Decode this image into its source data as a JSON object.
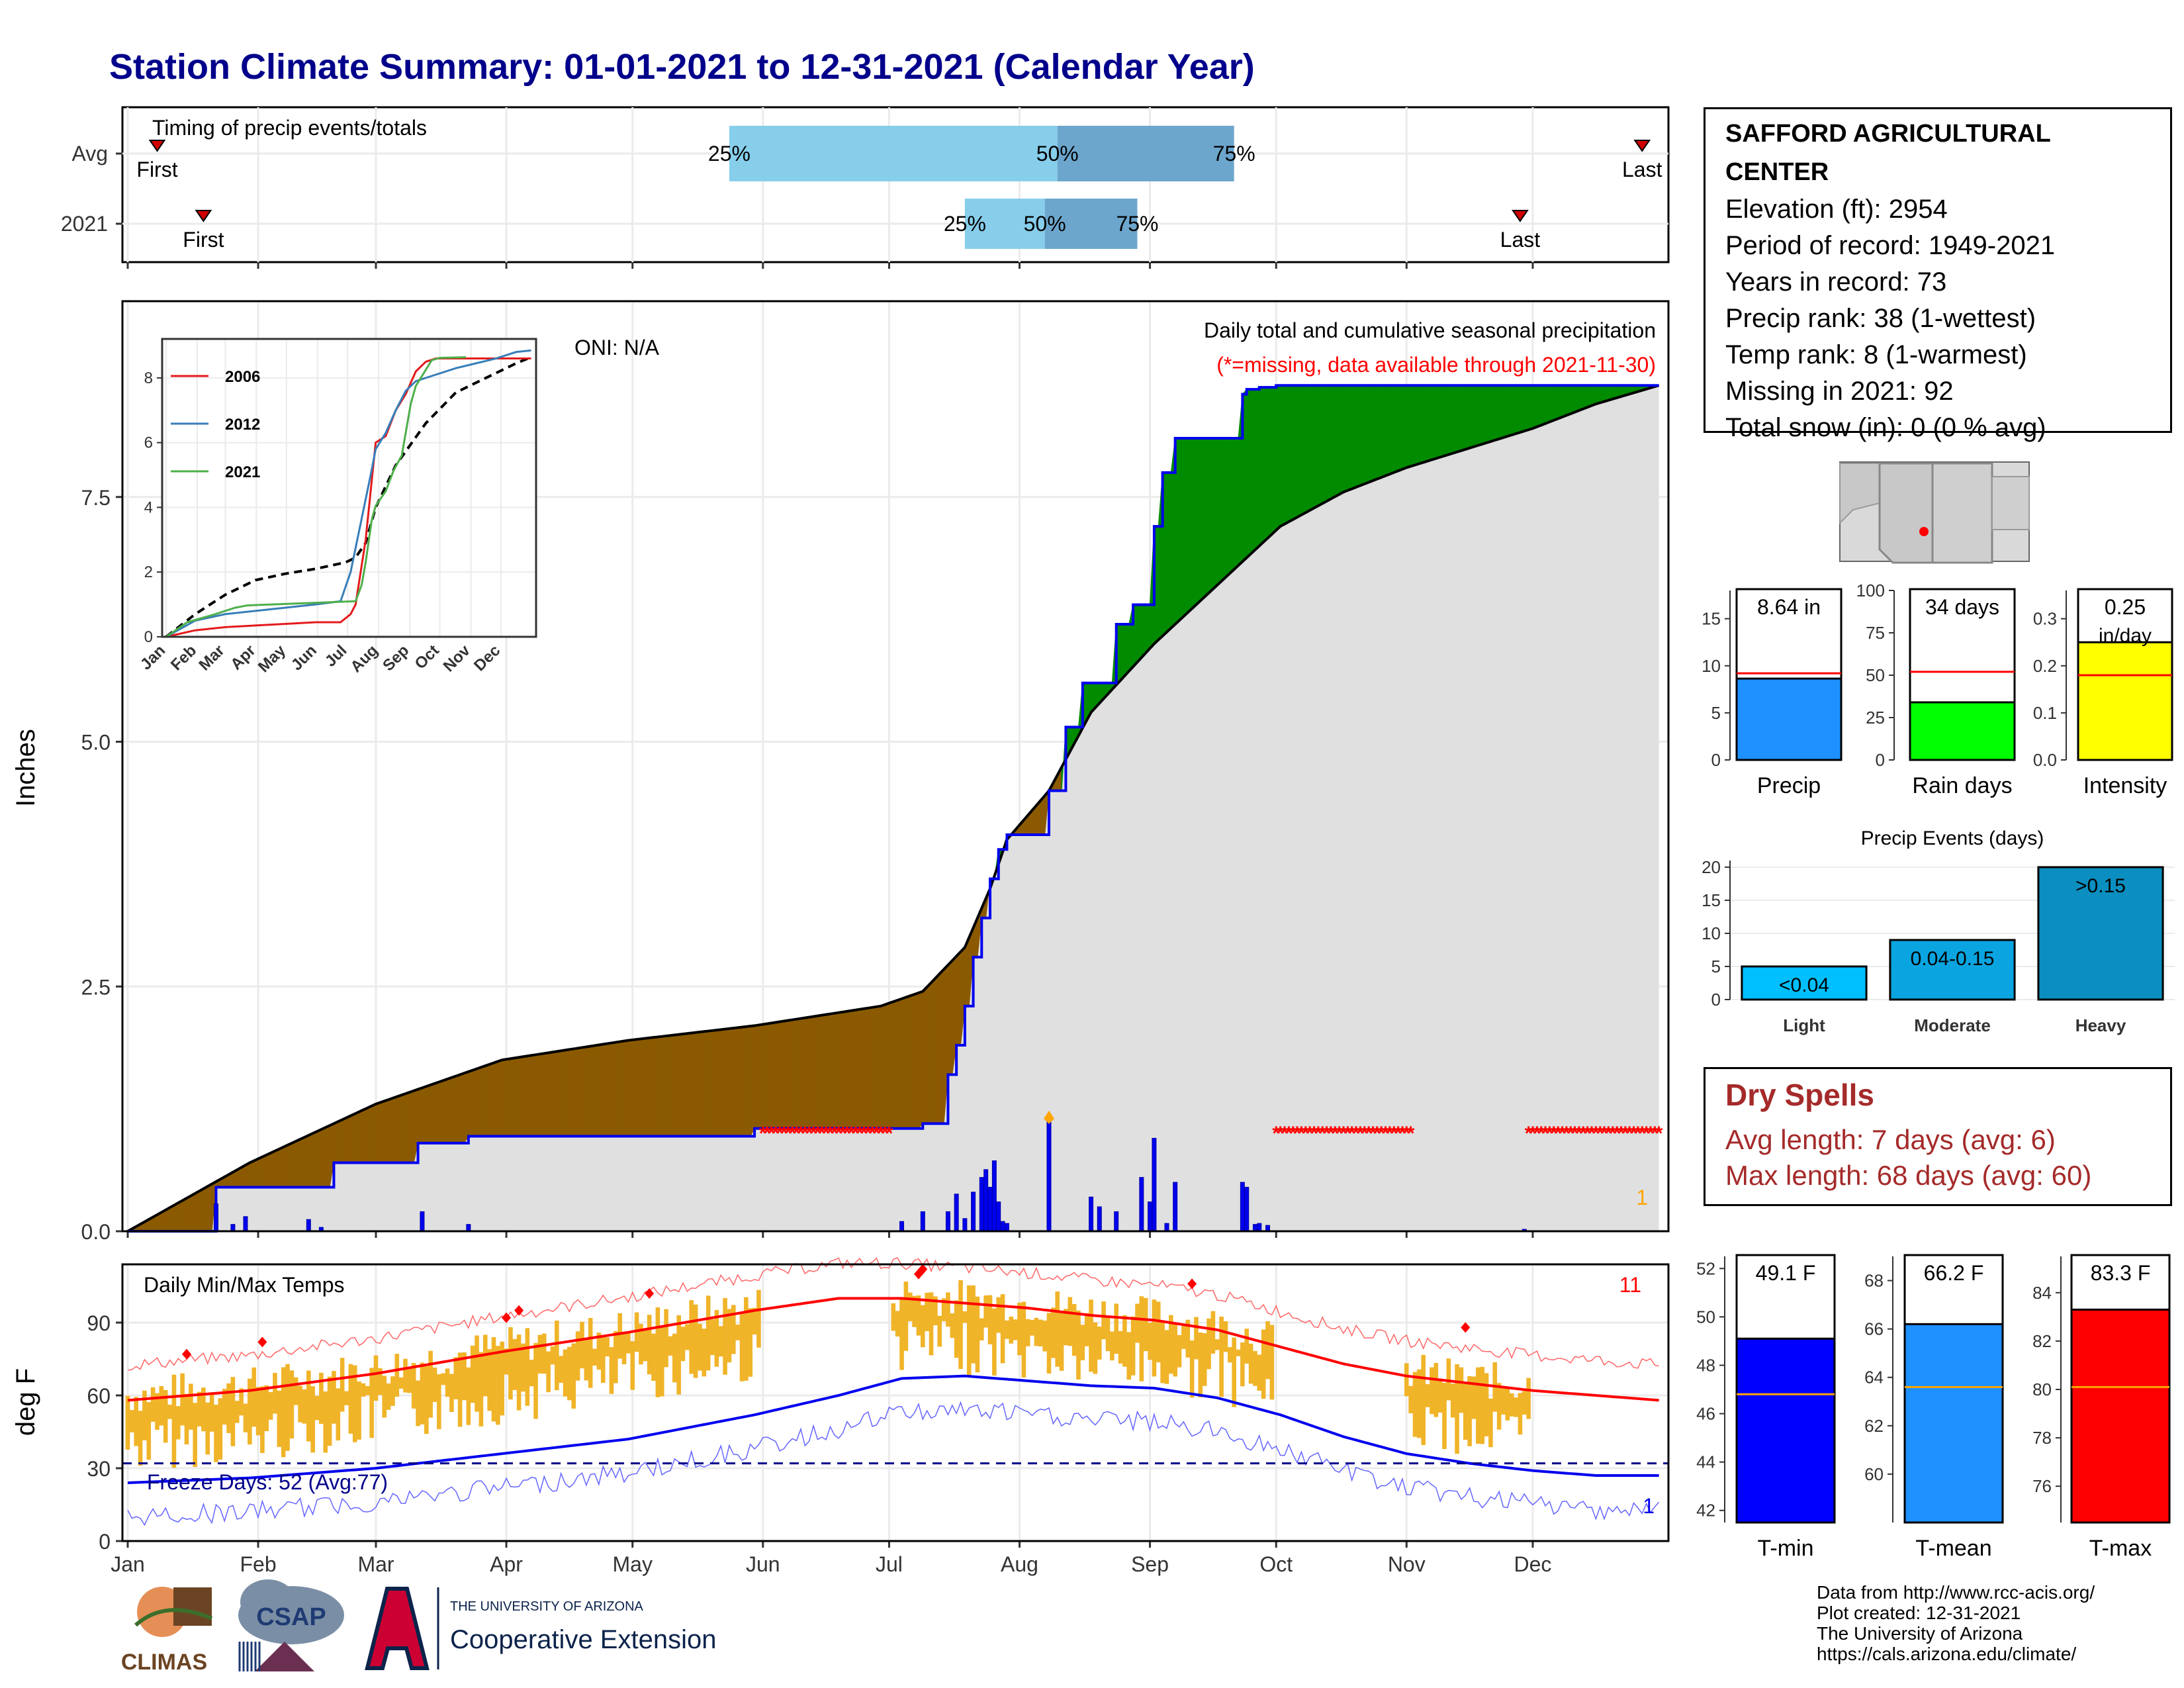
{
  "page_title": "Station Climate Summary: 01-01-2021 to 12-31-2021 (Calendar Year)",
  "station": {
    "name": "SAFFORD AGRICULTURAL CENTER",
    "lines": [
      "Elevation (ft): 2954",
      "Period of record: 1949-2021",
      "Years in record: 73",
      "Precip rank: 38 (1-wettest)",
      "Temp rank: 8 (1-warmest)",
      "Missing in 2021: 92",
      "Total snow (in): 0 (0 % avg)"
    ]
  },
  "dry_spells": {
    "heading": "Dry Spells",
    "avg_length": "Avg length: 7 days (avg: 6)",
    "max_length": "Max length: 68 days (avg: 60)"
  },
  "credits": [
    "Data from http://www.rcc-acis.org/",
    "Plot created: 12-31-2021",
    "The University of Arizona",
    "https://cals.arizona.edu/climate/"
  ],
  "logos": {
    "climas": "CLIMAS",
    "csap": "CSAP",
    "ua_small": "THE UNIVERSITY OF ARIZONA",
    "ua_big": "Cooperative Extension"
  },
  "months": [
    "Jan",
    "Feb",
    "Mar",
    "Apr",
    "May",
    "Jun",
    "Jul",
    "Aug",
    "Sep",
    "Oct",
    "Nov",
    "Dec"
  ],
  "chart_data": [
    {
      "id": "timing",
      "type": "bar",
      "title": "Timing of precip events/totals",
      "rows": [
        {
          "label": "Avg",
          "first_day": 8,
          "last_day": 361,
          "q25_day": 144,
          "q50_day": 222,
          "q75_day": 264,
          "first_label": "First",
          "last_label": "Last",
          "q_labels": [
            "25%",
            "50%",
            "75%"
          ]
        },
        {
          "label": "2021",
          "first_day": 19,
          "last_day": 332,
          "q25_day": 200,
          "q50_day": 219,
          "q75_day": 241,
          "first_label": "First",
          "last_label": "Last",
          "q_labels": [
            "25%",
            "50%",
            "75%"
          ]
        }
      ],
      "colors": {
        "q25_50": "#87ceeb",
        "q50_75": "#6ca6cd",
        "marker": "#d00000"
      }
    },
    {
      "id": "precip-cumulative",
      "type": "area",
      "title": "Daily total and cumulative seasonal precipitation",
      "subtitle": "(*=missing, data available through 2021-11-30)",
      "ylabel": "Inches",
      "ylim": [
        0,
        9.5
      ],
      "yticks": [
        0.0,
        2.5,
        5.0,
        7.5
      ],
      "ytick_labels": [
        "0.0",
        "2.5",
        "5.0",
        "7.5"
      ],
      "oni": "ONI: N/A",
      "corner_value": "1",
      "avg_cumulative": {
        "x": [
          1,
          30,
          60,
          90,
          120,
          150,
          180,
          190,
          200,
          206,
          210,
          220,
          230,
          245,
          260,
          275,
          290,
          305,
          320,
          335,
          350,
          365
        ],
        "y": [
          0,
          0.7,
          1.3,
          1.75,
          1.95,
          2.1,
          2.3,
          2.45,
          2.9,
          3.5,
          4.0,
          4.5,
          5.3,
          6.0,
          6.6,
          7.2,
          7.55,
          7.8,
          8.0,
          8.2,
          8.45,
          8.64
        ]
      },
      "cumulative_2021": {
        "x": [
          1,
          22,
          22,
          50,
          50,
          70,
          70,
          82,
          82,
          150,
          150,
          190,
          190,
          196,
          196,
          198,
          198,
          200,
          200,
          202,
          202,
          204,
          204,
          206,
          206,
          208,
          208,
          210,
          210,
          220,
          220,
          224,
          224,
          228,
          228,
          236,
          236,
          240,
          240,
          245,
          245,
          247,
          247,
          250,
          250,
          266,
          266,
          267,
          267,
          270,
          270,
          274,
          274,
          300,
          300,
          365
        ],
        "y": [
          0,
          0,
          0.45,
          0.45,
          0.7,
          0.7,
          0.9,
          0.9,
          0.97,
          0.97,
          1.05,
          1.05,
          1.1,
          1.1,
          1.6,
          1.6,
          1.9,
          1.9,
          2.3,
          2.3,
          2.8,
          2.8,
          3.2,
          3.2,
          3.6,
          3.6,
          3.9,
          3.9,
          4.05,
          4.05,
          4.5,
          4.5,
          5.15,
          5.15,
          5.6,
          5.6,
          6.2,
          6.2,
          6.4,
          6.4,
          7.2,
          7.2,
          7.75,
          7.75,
          8.1,
          8.1,
          8.55,
          8.55,
          8.6,
          8.6,
          8.62,
          8.62,
          8.64,
          8.64,
          8.64,
          8.64
        ]
      },
      "daily_bars": [
        {
          "day": 22,
          "in": 0.28
        },
        {
          "day": 26,
          "in": 0.07
        },
        {
          "day": 29,
          "in": 0.15
        },
        {
          "day": 44,
          "in": 0.12
        },
        {
          "day": 47,
          "in": 0.04
        },
        {
          "day": 71,
          "in": 0.2
        },
        {
          "day": 82,
          "in": 0.07
        },
        {
          "day": 185,
          "in": 0.1
        },
        {
          "day": 190,
          "in": 0.2
        },
        {
          "day": 196,
          "in": 0.2
        },
        {
          "day": 198,
          "in": 0.38
        },
        {
          "day": 200,
          "in": 0.13
        },
        {
          "day": 202,
          "in": 0.4
        },
        {
          "day": 204,
          "in": 0.55
        },
        {
          "day": 205,
          "in": 0.63
        },
        {
          "day": 206,
          "in": 0.45
        },
        {
          "day": 207,
          "in": 0.72
        },
        {
          "day": 208,
          "in": 0.3
        },
        {
          "day": 209,
          "in": 0.1
        },
        {
          "day": 210,
          "in": 0.08
        },
        {
          "day": 220,
          "in": 1.15
        },
        {
          "day": 230,
          "in": 0.35
        },
        {
          "day": 232,
          "in": 0.25
        },
        {
          "day": 236,
          "in": 0.2
        },
        {
          "day": 242,
          "in": 0.55
        },
        {
          "day": 244,
          "in": 0.3
        },
        {
          "day": 245,
          "in": 0.95
        },
        {
          "day": 248,
          "in": 0.08
        },
        {
          "day": 250,
          "in": 0.5
        },
        {
          "day": 266,
          "in": 0.5
        },
        {
          "day": 267,
          "in": 0.45
        },
        {
          "day": 269,
          "in": 0.07
        },
        {
          "day": 270,
          "in": 0.08
        },
        {
          "day": 272,
          "in": 0.06
        },
        {
          "day": 333,
          "in": 0.02
        }
      ],
      "missing_ranges": [
        [
          152,
          182
        ],
        [
          274,
          306
        ],
        [
          334,
          365
        ]
      ],
      "missing_level": 1.0,
      "colors": {
        "below_avg": "#8b5a00",
        "above_avg": "#008b00",
        "obs_line": "#0000ee",
        "avg_line": "#000000",
        "bar": "#0000ee",
        "missing": "#ff0000",
        "bg_fill": "#e0e0e0"
      }
    },
    {
      "id": "inset",
      "type": "line",
      "ylim": [
        0,
        9
      ],
      "yticks": [
        0,
        2,
        4,
        6,
        8
      ],
      "series": [
        {
          "name": "2006",
          "color": "#e41a1c",
          "x": [
            1,
            30,
            60,
            90,
            120,
            150,
            175,
            185,
            190,
            200,
            205,
            210,
            220,
            230,
            240,
            250,
            260,
            270,
            280,
            300,
            320,
            340,
            365
          ],
          "y": [
            0,
            0.2,
            0.3,
            0.35,
            0.4,
            0.45,
            0.45,
            0.7,
            1.0,
            3.0,
            4.5,
            6.0,
            6.2,
            7.0,
            7.5,
            8.2,
            8.5,
            8.6,
            8.6,
            8.6,
            8.6,
            8.6,
            8.6
          ]
        },
        {
          "name": "2012",
          "color": "#377eb8",
          "x": [
            1,
            30,
            60,
            90,
            120,
            150,
            175,
            185,
            195,
            205,
            210,
            220,
            230,
            240,
            250,
            270,
            290,
            310,
            330,
            350,
            365
          ],
          "y": [
            0,
            0.5,
            0.7,
            0.8,
            0.9,
            1.0,
            1.1,
            2.0,
            3.5,
            5.0,
            5.8,
            6.3,
            7.0,
            7.6,
            7.9,
            8.1,
            8.3,
            8.45,
            8.6,
            8.8,
            8.85
          ]
        },
        {
          "name": "2021",
          "color": "#4daf4a",
          "x": [
            1,
            22,
            50,
            70,
            82,
            150,
            190,
            196,
            200,
            206,
            210,
            220,
            228,
            236,
            245,
            250,
            266,
            274,
            300
          ],
          "y": [
            0,
            0.45,
            0.7,
            0.9,
            0.97,
            1.05,
            1.1,
            1.6,
            2.3,
            3.6,
            4.05,
            4.5,
            5.15,
            5.6,
            7.2,
            7.75,
            8.55,
            8.62,
            8.64
          ]
        }
      ],
      "avg": {
        "x": [
          1,
          30,
          60,
          90,
          120,
          150,
          180,
          190,
          200,
          210,
          230,
          260,
          290,
          320,
          350,
          365
        ],
        "y": [
          0,
          0.7,
          1.3,
          1.75,
          1.95,
          2.1,
          2.3,
          2.45,
          2.9,
          4.0,
          5.3,
          6.6,
          7.55,
          8.0,
          8.45,
          8.64
        ]
      }
    },
    {
      "id": "temps",
      "type": "line",
      "title": "Daily Min/Max Temps",
      "ylabel": "deg F",
      "ylim": [
        0,
        114
      ],
      "yticks": [
        0,
        30,
        60,
        90
      ],
      "freeze_line": 32,
      "freeze_text": "Freeze Days: 52 (Avg:77)",
      "top_right_count": "11",
      "bottom_right_count": "1",
      "avg_max": {
        "x": [
          1,
          30,
          60,
          90,
          120,
          150,
          170,
          185,
          200,
          215,
          230,
          245,
          260,
          275,
          290,
          305,
          320,
          335,
          350,
          365
        ],
        "y": [
          58,
          62,
          69,
          78,
          86,
          95,
          100,
          100,
          98,
          96,
          93,
          91,
          87,
          80,
          73,
          68,
          65,
          62,
          60,
          58
        ]
      },
      "avg_min": {
        "x": [
          1,
          30,
          60,
          90,
          120,
          150,
          170,
          185,
          200,
          215,
          230,
          245,
          260,
          275,
          290,
          305,
          320,
          335,
          350,
          365
        ],
        "y": [
          24,
          26,
          30,
          36,
          42,
          52,
          60,
          67,
          68,
          66,
          64,
          63,
          59,
          52,
          43,
          36,
          32,
          29,
          27,
          27
        ]
      },
      "obs_days": [
        [
          1,
          151
        ],
        [
          183,
          273
        ],
        [
          305,
          334
        ]
      ],
      "record_max_markers": [
        {
          "day": 15,
          "f": 77
        },
        {
          "day": 33,
          "f": 82
        },
        {
          "day": 91,
          "f": 92
        },
        {
          "day": 94,
          "f": 95
        },
        {
          "day": 125,
          "f": 102
        },
        {
          "day": 189,
          "f": 110
        },
        {
          "day": 190,
          "f": 112
        },
        {
          "day": 254,
          "f": 106
        },
        {
          "day": 319,
          "f": 88
        }
      ],
      "colors": {
        "range_bar": "#f0b429",
        "avg_max": "#ff0000",
        "avg_min": "#0000ee",
        "record_max": "#ff6666",
        "record_min": "#6666ff",
        "freeze": "#00008b"
      }
    },
    {
      "id": "precip-mini",
      "type": "bar",
      "xlabel": "Precip",
      "value": 8.64,
      "avg": 9.2,
      "label": "8.64 in",
      "ylim": [
        0,
        18
      ],
      "yticks": [
        0,
        5,
        10,
        15
      ],
      "color": "#1e90ff"
    },
    {
      "id": "raindays-mini",
      "type": "bar",
      "xlabel": "Rain days",
      "value": 34,
      "avg": 52,
      "label": "34 days",
      "ylim": [
        0,
        100
      ],
      "yticks": [
        0,
        25,
        50,
        75,
        100
      ],
      "color": "#00ff00"
    },
    {
      "id": "intensity-mini",
      "type": "bar",
      "xlabel": "Intensity",
      "value": 0.25,
      "avg": 0.18,
      "label": "0.25",
      "label2": "in/day",
      "ylim": [
        0,
        0.36
      ],
      "ytick_values": [
        0,
        0.1,
        0.2,
        0.3
      ],
      "yticks": [
        "0.0",
        "0.1",
        "0.2",
        "0.3"
      ],
      "color": "#ffff00"
    },
    {
      "id": "events",
      "type": "bar",
      "title": "Precip Events (days)",
      "categories": [
        "Light",
        "Moderate",
        "Heavy"
      ],
      "values": [
        5,
        9,
        20
      ],
      "labels": [
        "<0.04",
        "0.04-0.15",
        ">0.15"
      ],
      "ylim": [
        0,
        21
      ],
      "yticks": [
        0,
        5,
        10,
        15,
        20
      ],
      "colors": [
        "#00bfff",
        "#0aa5e0",
        "#0b8fc0"
      ]
    },
    {
      "id": "tmin-mini",
      "type": "bar",
      "xlabel": "T-min",
      "value": 49.1,
      "avg": 46.8,
      "label": "49.1 F",
      "ylim": [
        41.5,
        52.5
      ],
      "yticks": [
        42,
        44,
        46,
        48,
        50,
        52
      ],
      "color": "#0000ff"
    },
    {
      "id": "tmean-mini",
      "type": "bar",
      "xlabel": "T-mean",
      "value": 66.2,
      "avg": 63.6,
      "label": "66.2 F",
      "ylim": [
        58,
        69
      ],
      "yticks": [
        60,
        62,
        64,
        66,
        68
      ],
      "color": "#1e90ff"
    },
    {
      "id": "tmax-mini",
      "type": "bar",
      "xlabel": "T-max",
      "value": 83.3,
      "avg": 80.1,
      "label": "83.3 F",
      "ylim": [
        74.5,
        85.5
      ],
      "yticks": [
        76,
        78,
        80,
        82,
        84
      ],
      "color": "#ff0000"
    }
  ]
}
